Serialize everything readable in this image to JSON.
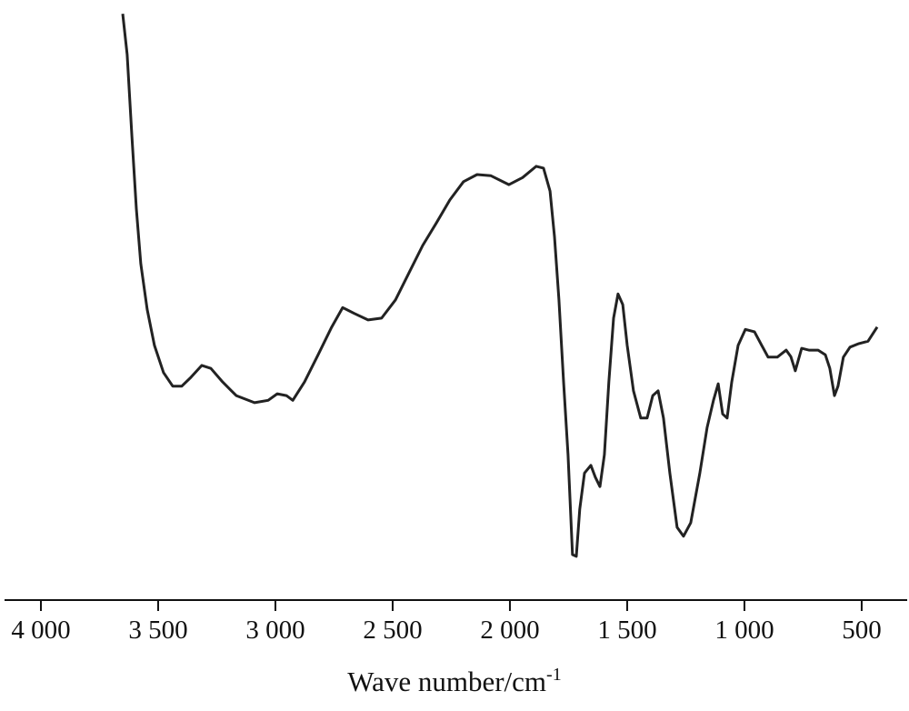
{
  "chart_data": {
    "type": "line",
    "xlabel": "Wave number/cm",
    "xlabel_sup": "-1",
    "xlim": [
      4155,
      306
    ],
    "ylim": [
      0,
      100
    ],
    "xticks": [
      {
        "value": 4000,
        "label": "4 000"
      },
      {
        "value": 3500,
        "label": "3 500"
      },
      {
        "value": 3000,
        "label": "3 000"
      },
      {
        "value": 2500,
        "label": "2 500"
      },
      {
        "value": 2000,
        "label": "2 000"
      },
      {
        "value": 1500,
        "label": "1 500"
      },
      {
        "value": 1000,
        "label": "1 000"
      },
      500
    ],
    "color": "#222222",
    "x": [
      3651,
      3632,
      3612,
      3593,
      3574,
      3547,
      3516,
      3477,
      3438,
      3399,
      3360,
      3314,
      3275,
      3225,
      3167,
      3089,
      3031,
      2992,
      2953,
      2926,
      2876,
      2818,
      2760,
      2713,
      2663,
      2605,
      2547,
      2488,
      2430,
      2372,
      2314,
      2256,
      2198,
      2140,
      2081,
      2004,
      1946,
      1888,
      1857,
      1829,
      1810,
      1791,
      1771,
      1752,
      1733,
      1717,
      1702,
      1682,
      1655,
      1636,
      1616,
      1597,
      1578,
      1558,
      1539,
      1519,
      1500,
      1473,
      1442,
      1415,
      1391,
      1368,
      1345,
      1318,
      1287,
      1260,
      1229,
      1190,
      1159,
      1132,
      1112,
      1093,
      1074,
      1054,
      1027,
      996,
      957,
      926,
      899,
      860,
      822,
      802,
      783,
      756,
      725,
      686,
      655,
      636,
      616,
      601,
      578,
      550,
      512,
      473,
      434
    ],
    "values": [
      99.2,
      92.3,
      78.5,
      66.2,
      56.9,
      49.2,
      43.1,
      38.5,
      36.2,
      36.2,
      37.7,
      39.7,
      39.2,
      36.9,
      34.6,
      33.4,
      33.8,
      34.9,
      34.6,
      33.8,
      36.9,
      41.5,
      46.2,
      49.5,
      48.5,
      47.4,
      47.7,
      50.8,
      55.4,
      60.0,
      63.8,
      67.7,
      70.8,
      72.0,
      71.8,
      70.3,
      71.5,
      73.4,
      73.1,
      69.2,
      61.5,
      50.8,
      36.9,
      24.6,
      7.7,
      7.4,
      15.4,
      21.5,
      22.8,
      20.8,
      19.2,
      24.6,
      36.9,
      47.7,
      51.8,
      50.0,
      43.1,
      35.4,
      30.8,
      30.8,
      34.6,
      35.4,
      30.8,
      21.5,
      12.3,
      10.8,
      13.1,
      21.5,
      29.2,
      33.8,
      36.6,
      31.5,
      30.8,
      36.9,
      43.1,
      45.8,
      45.4,
      43.1,
      41.1,
      41.1,
      42.3,
      41.2,
      38.8,
      42.6,
      42.3,
      42.3,
      41.5,
      39.2,
      34.6,
      36.2,
      41.1,
      42.8,
      43.4,
      43.8,
      46.2
    ]
  }
}
